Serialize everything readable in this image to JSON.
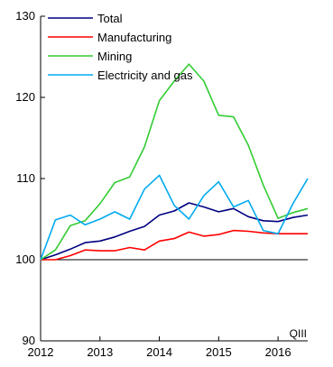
{
  "chart_data": {
    "type": "line",
    "x": [
      "2012-I",
      "2012-II",
      "2012-III",
      "2012-IV",
      "2013-I",
      "2013-II",
      "2013-III",
      "2013-IV",
      "2014-I",
      "2014-II",
      "2014-III",
      "2014-IV",
      "2015-I",
      "2015-II",
      "2015-III",
      "2015-IV",
      "2016-I",
      "2016-II",
      "2016-III"
    ],
    "x_tick_labels": [
      "2012",
      "2013",
      "2014",
      "2015",
      "2016"
    ],
    "ylim": [
      90,
      130
    ],
    "y_ticks": [
      90,
      100,
      110,
      120,
      130
    ],
    "title": "",
    "xlabel": "",
    "ylabel": "",
    "legend_position": "top-left",
    "annotation": "QIII",
    "reference_line": 100,
    "series": [
      {
        "name": "Total",
        "color": "#000080",
        "values": [
          100.0,
          100.6,
          101.3,
          102.1,
          102.3,
          102.8,
          103.5,
          104.1,
          105.5,
          106.0,
          107.0,
          106.5,
          105.9,
          106.3,
          105.3,
          104.8,
          104.7,
          105.2,
          105.5
        ]
      },
      {
        "name": "Manufacturing",
        "color": "#ff0000",
        "values": [
          100.0,
          100.0,
          100.5,
          101.2,
          101.1,
          101.1,
          101.5,
          101.2,
          102.3,
          102.6,
          103.4,
          102.9,
          103.1,
          103.6,
          103.5,
          103.3,
          103.2,
          103.2,
          103.2
        ]
      },
      {
        "name": "Mining",
        "color": "#33cc33",
        "values": [
          100.0,
          101.2,
          104.2,
          104.8,
          106.9,
          109.5,
          110.2,
          113.9,
          119.6,
          122.0,
          124.1,
          122.0,
          117.8,
          117.6,
          114.1,
          109.2,
          105.1,
          105.8,
          106.3
        ]
      },
      {
        "name": "Electricity and gas",
        "color": "#00aaee",
        "values": [
          100.0,
          104.9,
          105.5,
          104.3,
          105.0,
          105.9,
          105.0,
          108.7,
          110.4,
          106.7,
          105.0,
          107.9,
          109.6,
          106.5,
          107.3,
          103.6,
          103.2,
          106.9,
          110.0
        ]
      }
    ]
  }
}
